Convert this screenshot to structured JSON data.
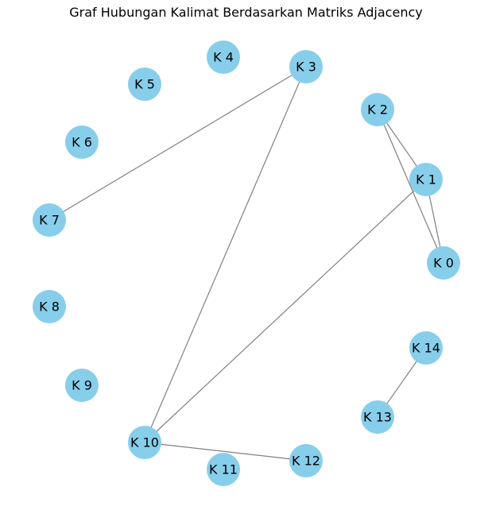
{
  "title": "Graf Hubungan Kalimat Berdasarkan Matriks Adjacency",
  "colors": {
    "node_fill": "#87ceeb",
    "edge_stroke": "#808080",
    "label": "#000000"
  },
  "nodes": [
    {
      "id": "0",
      "label": "K 0"
    },
    {
      "id": "1",
      "label": "K 1"
    },
    {
      "id": "2",
      "label": "K 2"
    },
    {
      "id": "3",
      "label": "K 3"
    },
    {
      "id": "4",
      "label": "K 4"
    },
    {
      "id": "5",
      "label": "K 5"
    },
    {
      "id": "6",
      "label": "K 6"
    },
    {
      "id": "7",
      "label": "K 7"
    },
    {
      "id": "8",
      "label": "K 8"
    },
    {
      "id": "9",
      "label": "K 9"
    },
    {
      "id": "10",
      "label": "K 10"
    },
    {
      "id": "11",
      "label": "K 11"
    },
    {
      "id": "12",
      "label": "K 12"
    },
    {
      "id": "13",
      "label": "K 13"
    },
    {
      "id": "14",
      "label": "K 14"
    }
  ],
  "edges": [
    {
      "from": "0",
      "to": "1"
    },
    {
      "from": "0",
      "to": "2"
    },
    {
      "from": "1",
      "to": "2"
    },
    {
      "from": "1",
      "to": "10"
    },
    {
      "from": "3",
      "to": "7"
    },
    {
      "from": "3",
      "to": "10"
    },
    {
      "from": "10",
      "to": "12"
    },
    {
      "from": "13",
      "to": "14"
    }
  ]
}
